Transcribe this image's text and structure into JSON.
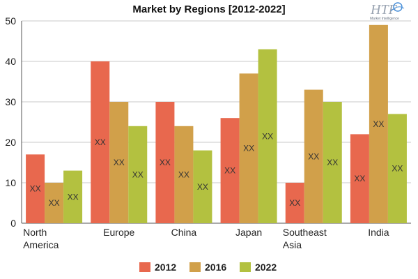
{
  "chart_data": {
    "type": "bar",
    "title": "Market by Regions [2012-2022]",
    "categories": [
      "North\nAmerica",
      "Europe",
      "China",
      "Japan",
      "Southeast\nAsia",
      "India"
    ],
    "series": [
      {
        "name": "2012",
        "color": "#e8684e",
        "values": [
          17,
          40,
          30,
          26,
          10,
          22
        ]
      },
      {
        "name": "2016",
        "color": "#d1a04a",
        "values": [
          10,
          30,
          24,
          37,
          33,
          49
        ]
      },
      {
        "name": "2022",
        "color": "#b3c140",
        "values": [
          13,
          24,
          18,
          43,
          30,
          27
        ]
      }
    ],
    "bar_label": "XX",
    "ylim": [
      0,
      50
    ],
    "yticks": [
      0,
      10,
      20,
      30,
      40,
      50
    ],
    "grid": true,
    "legend": "bottom"
  },
  "logo": {
    "text": "HTF",
    "subtext": "Market Intelligence"
  }
}
